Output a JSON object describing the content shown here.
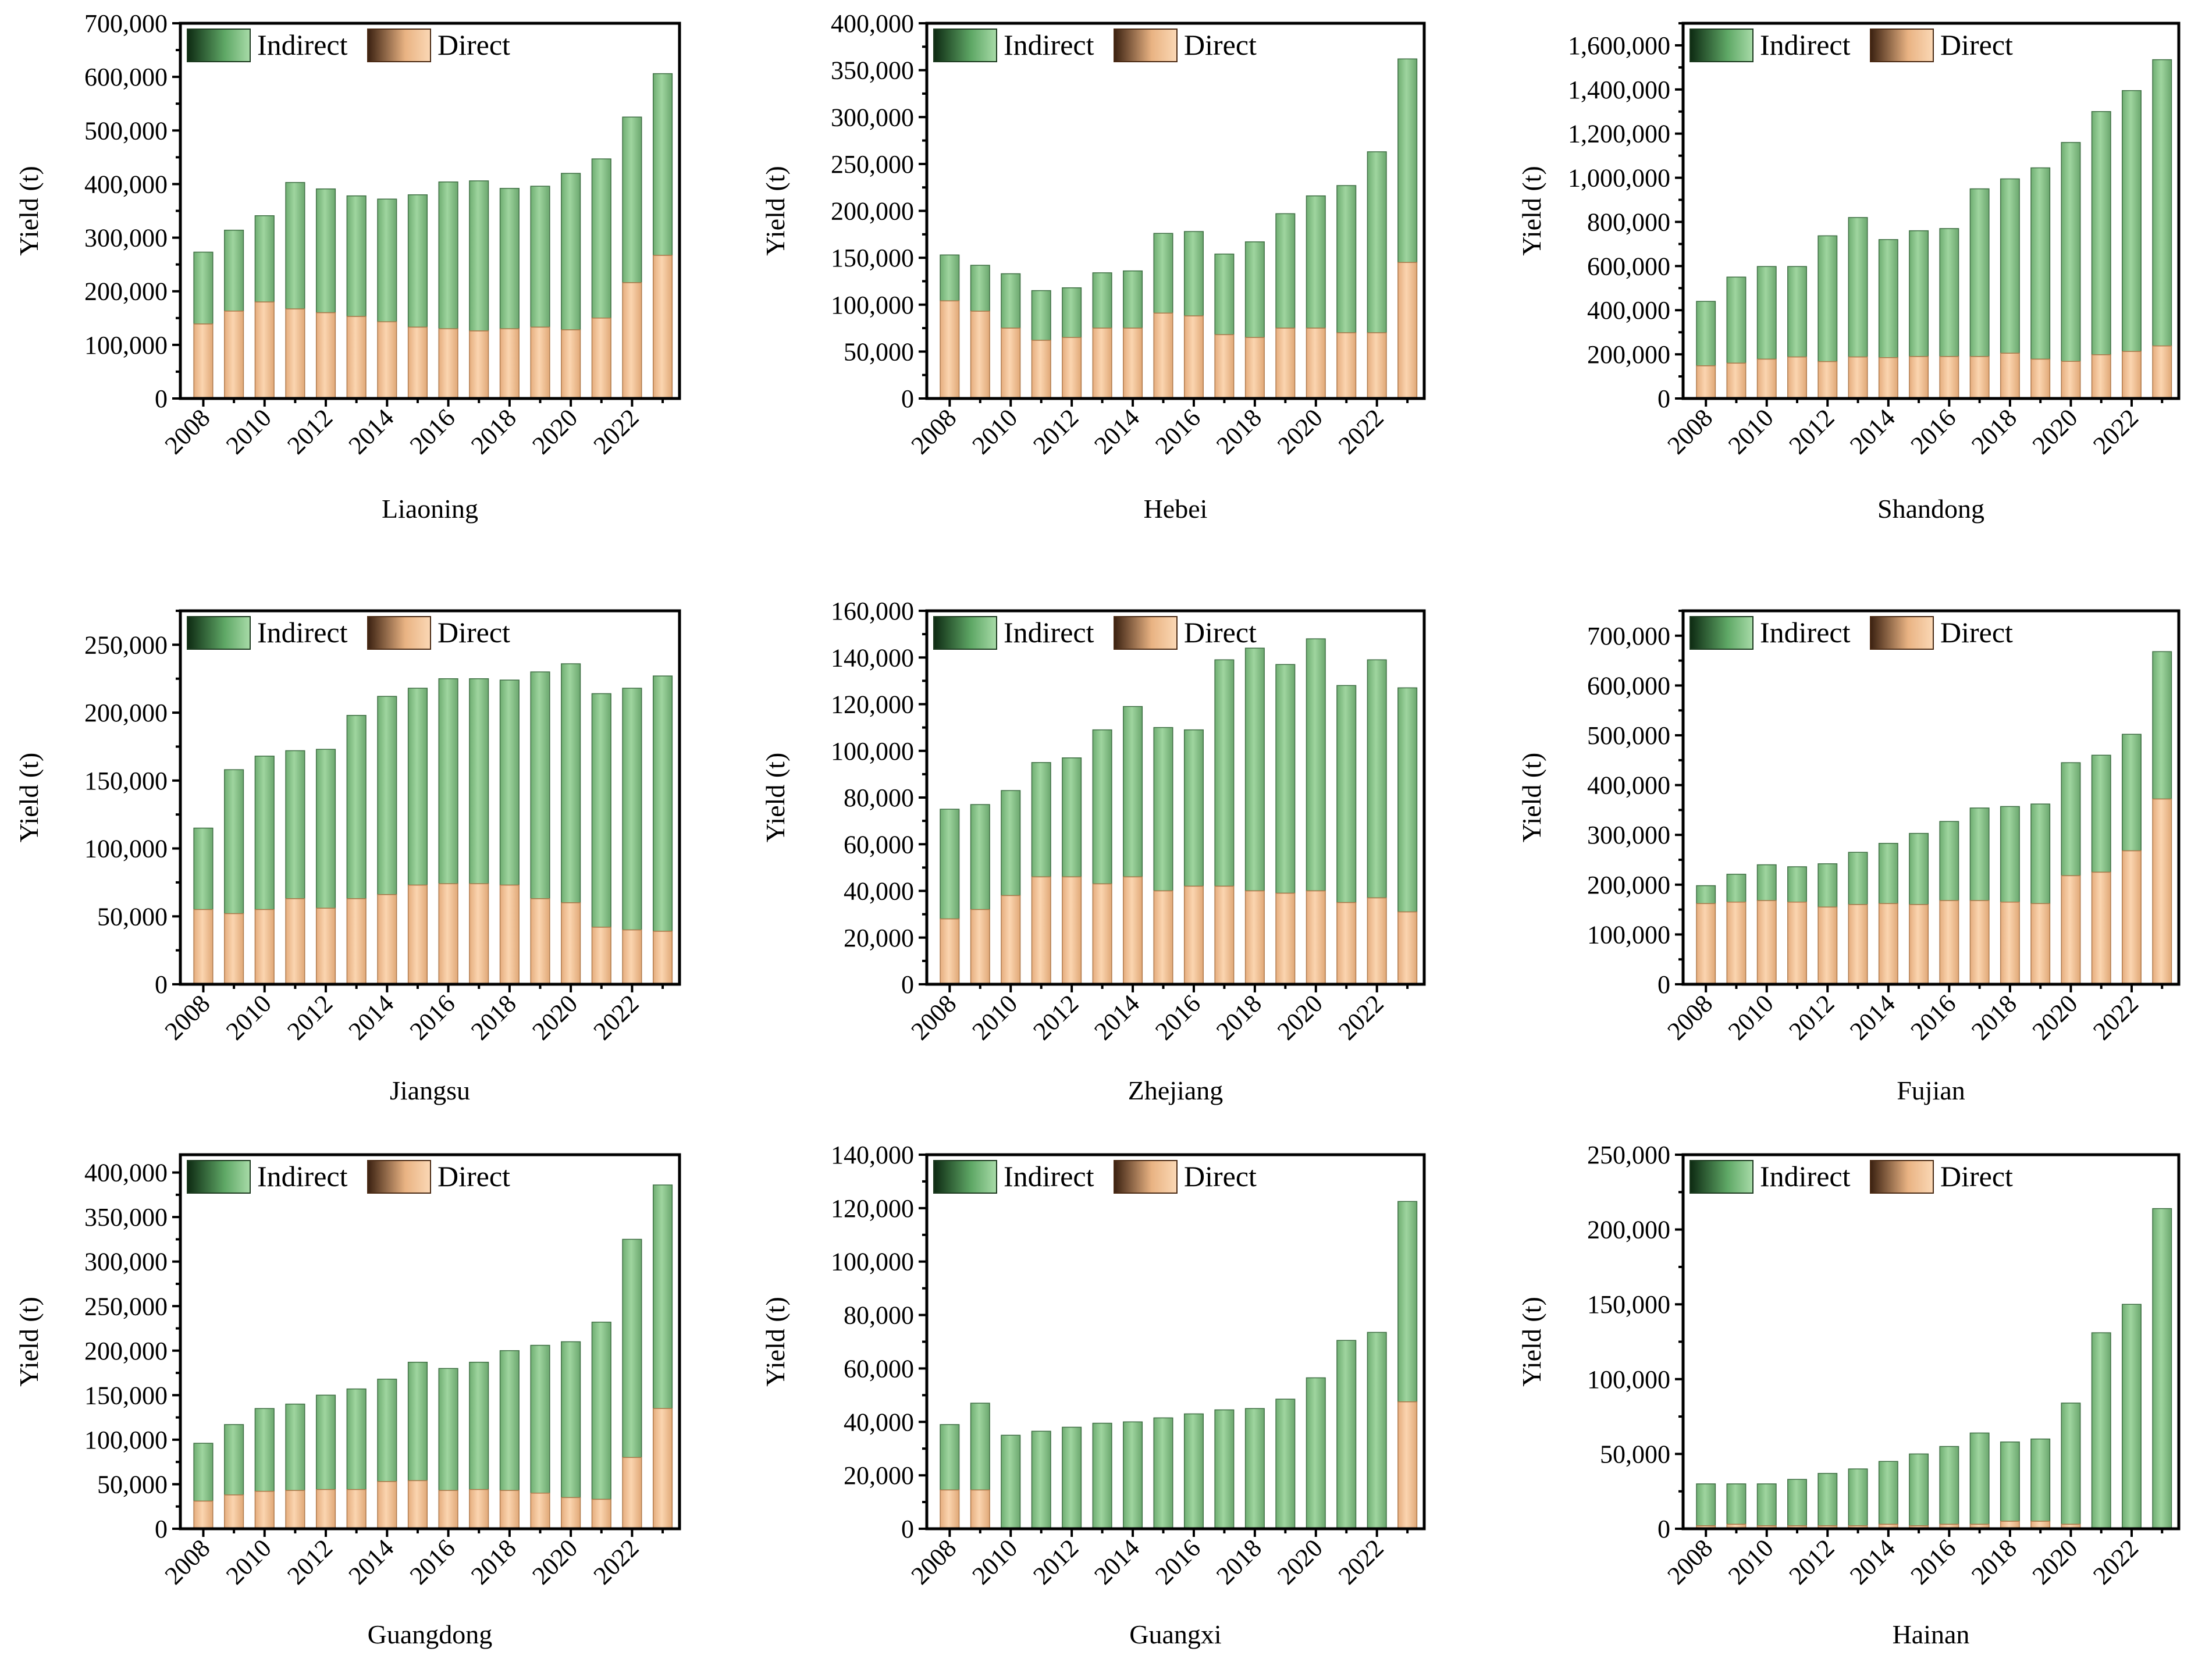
{
  "legend": {
    "indirect": "Indirect",
    "direct": "Direct"
  },
  "colors": {
    "indirect_fill": "#8fc98f",
    "indirect_dark": "#0d2a12",
    "direct_fill": "#f5c9a0",
    "direct_dark": "#3a2010",
    "axis": "#000000"
  },
  "chart_data": [
    {
      "type": "bar",
      "stacked": true,
      "title": "Liaoning",
      "xlabel": "",
      "ylabel": "Yield (t)",
      "x": [
        2008,
        2009,
        2010,
        2011,
        2012,
        2013,
        2014,
        2015,
        2016,
        2017,
        2018,
        2019,
        2020,
        2021,
        2022,
        2023
      ],
      "x_tick_labels": [
        "2008",
        "2010",
        "2012",
        "2014",
        "2016",
        "2018",
        "2020",
        "2022"
      ],
      "ylim": [
        0,
        700000
      ],
      "y_ticks": [
        0,
        100000,
        200000,
        300000,
        400000,
        500000,
        600000,
        700000
      ],
      "y_tick_labels": [
        "0",
        "100,000",
        "200,000",
        "300,000",
        "400,000",
        "500,000",
        "600,000",
        "700,000"
      ],
      "series": [
        {
          "name": "Indirect",
          "totals": [
            273000,
            314000,
            341000,
            403000,
            391000,
            378000,
            372000,
            380000,
            404000,
            406000,
            392000,
            396000,
            420000,
            447000,
            525000,
            606000
          ]
        },
        {
          "name": "Direct",
          "values": [
            139000,
            163000,
            180000,
            167000,
            160000,
            153000,
            143000,
            133000,
            130000,
            126000,
            130000,
            133000,
            128000,
            150000,
            216000,
            267000
          ]
        }
      ],
      "legend_position": "top-left",
      "grid": false
    },
    {
      "type": "bar",
      "stacked": true,
      "title": "Hebei",
      "xlabel": "",
      "ylabel": "Yield (t)",
      "x": [
        2008,
        2009,
        2010,
        2011,
        2012,
        2013,
        2014,
        2015,
        2016,
        2017,
        2018,
        2019,
        2020,
        2021,
        2022,
        2023
      ],
      "x_tick_labels": [
        "2008",
        "2010",
        "2012",
        "2014",
        "2016",
        "2018",
        "2020",
        "2022"
      ],
      "ylim": [
        0,
        400000
      ],
      "y_ticks": [
        0,
        50000,
        100000,
        150000,
        200000,
        250000,
        300000,
        350000,
        400000
      ],
      "y_tick_labels": [
        "0",
        "50,000",
        "100,000",
        "150,000",
        "200,000",
        "250,000",
        "300,000",
        "350,000",
        "400,000"
      ],
      "series": [
        {
          "name": "Indirect",
          "totals": [
            153000,
            142000,
            133000,
            115000,
            118000,
            134000,
            136000,
            176000,
            178000,
            154000,
            167000,
            197000,
            216000,
            227000,
            263000,
            362000
          ]
        },
        {
          "name": "Direct",
          "values": [
            104000,
            93000,
            75000,
            62000,
            65000,
            75000,
            75000,
            91000,
            88000,
            68000,
            65000,
            75000,
            75000,
            70000,
            70000,
            145000
          ]
        }
      ],
      "legend_position": "top-left",
      "grid": false
    },
    {
      "type": "bar",
      "stacked": true,
      "title": "Shandong",
      "xlabel": "",
      "ylabel": "Yield (t)",
      "x": [
        2008,
        2009,
        2010,
        2011,
        2012,
        2013,
        2014,
        2015,
        2016,
        2017,
        2018,
        2019,
        2020,
        2021,
        2022,
        2023
      ],
      "x_tick_labels": [
        "2008",
        "2010",
        "2012",
        "2014",
        "2016",
        "2018",
        "2020",
        "2022"
      ],
      "ylim": [
        0,
        1700000
      ],
      "y_ticks": [
        0,
        200000,
        400000,
        600000,
        800000,
        1000000,
        1200000,
        1400000,
        1600000
      ],
      "y_tick_labels": [
        "0",
        "200,000",
        "400,000",
        "600,000",
        "800,000",
        "1,000,000",
        "1,200,000",
        "1,400,000",
        "1,600,000"
      ],
      "series": [
        {
          "name": "Indirect",
          "totals": [
            440000,
            550000,
            598000,
            598000,
            737000,
            820000,
            720000,
            760000,
            770000,
            950000,
            995000,
            1045000,
            1160000,
            1300000,
            1395000,
            1535000
          ]
        },
        {
          "name": "Direct",
          "values": [
            148000,
            160000,
            178000,
            188000,
            167000,
            188000,
            185000,
            190000,
            190000,
            190000,
            205000,
            178000,
            168000,
            198000,
            213000,
            238000
          ]
        }
      ],
      "legend_position": "top-left",
      "grid": false
    },
    {
      "type": "bar",
      "stacked": true,
      "title": "Jiangsu",
      "xlabel": "",
      "ylabel": "Yield (t)",
      "x": [
        2008,
        2009,
        2010,
        2011,
        2012,
        2013,
        2014,
        2015,
        2016,
        2017,
        2018,
        2019,
        2020,
        2021,
        2022,
        2023
      ],
      "x_tick_labels": [
        "2008",
        "2010",
        "2012",
        "2014",
        "2016",
        "2018",
        "2020",
        "2022"
      ],
      "ylim": [
        0,
        275000
      ],
      "y_ticks": [
        0,
        50000,
        100000,
        150000,
        200000,
        250000
      ],
      "y_tick_labels": [
        "0",
        "50,000",
        "100,000",
        "150,000",
        "200,000",
        "250,000"
      ],
      "series": [
        {
          "name": "Indirect",
          "totals": [
            115000,
            158000,
            168000,
            172000,
            173000,
            198000,
            212000,
            218000,
            225000,
            225000,
            224000,
            230000,
            236000,
            214000,
            218000,
            227000
          ]
        },
        {
          "name": "Direct",
          "values": [
            55000,
            52000,
            55000,
            63000,
            56000,
            63000,
            66000,
            73000,
            74000,
            74000,
            73000,
            63000,
            60000,
            42000,
            40000,
            39000
          ]
        }
      ],
      "legend_position": "top-left",
      "grid": false
    },
    {
      "type": "bar",
      "stacked": true,
      "title": "Zhejiang",
      "xlabel": "",
      "ylabel": "Yield (t)",
      "x": [
        2008,
        2009,
        2010,
        2011,
        2012,
        2013,
        2014,
        2015,
        2016,
        2017,
        2018,
        2019,
        2020,
        2021,
        2022,
        2023
      ],
      "x_tick_labels": [
        "2008",
        "2010",
        "2012",
        "2014",
        "2016",
        "2018",
        "2020",
        "2022"
      ],
      "ylim": [
        0,
        160000
      ],
      "y_ticks": [
        0,
        20000,
        40000,
        60000,
        80000,
        100000,
        120000,
        140000,
        160000
      ],
      "y_tick_labels": [
        "0",
        "20,000",
        "40,000",
        "60,000",
        "80,000",
        "100,000",
        "120,000",
        "140,000",
        "160,000"
      ],
      "series": [
        {
          "name": "Indirect",
          "totals": [
            75000,
            77000,
            83000,
            95000,
            97000,
            109000,
            119000,
            110000,
            109000,
            139000,
            144000,
            137000,
            148000,
            128000,
            139000,
            127000
          ]
        },
        {
          "name": "Direct",
          "values": [
            28000,
            32000,
            38000,
            46000,
            46000,
            43000,
            46000,
            40000,
            42000,
            42000,
            40000,
            39000,
            40000,
            35000,
            37000,
            31000
          ]
        }
      ],
      "legend_position": "top-left",
      "grid": false
    },
    {
      "type": "bar",
      "stacked": true,
      "title": "Fujian",
      "xlabel": "",
      "ylabel": "Yield (t)",
      "x": [
        2008,
        2009,
        2010,
        2011,
        2012,
        2013,
        2014,
        2015,
        2016,
        2017,
        2018,
        2019,
        2020,
        2021,
        2022,
        2023
      ],
      "x_tick_labels": [
        "2008",
        "2010",
        "2012",
        "2014",
        "2016",
        "2018",
        "2020",
        "2022"
      ],
      "ylim": [
        0,
        750000
      ],
      "y_ticks": [
        0,
        100000,
        200000,
        300000,
        400000,
        500000,
        600000,
        700000
      ],
      "y_tick_labels": [
        "0",
        "100,000",
        "200,000",
        "300,000",
        "400,000",
        "500,000",
        "600,000",
        "700,000"
      ],
      "series": [
        {
          "name": "Indirect",
          "totals": [
            198000,
            221000,
            240000,
            236000,
            242000,
            265000,
            283000,
            303000,
            327000,
            354000,
            357000,
            362000,
            445000,
            460000,
            502000,
            668000
          ]
        },
        {
          "name": "Direct",
          "values": [
            162000,
            165000,
            168000,
            165000,
            155000,
            160000,
            162000,
            160000,
            168000,
            168000,
            165000,
            162000,
            218000,
            225000,
            268000,
            372000
          ]
        }
      ],
      "legend_position": "top-left",
      "grid": false
    },
    {
      "type": "bar",
      "stacked": true,
      "title": "Guangdong",
      "xlabel": "",
      "ylabel": "Yield (t)",
      "x": [
        2008,
        2009,
        2010,
        2011,
        2012,
        2013,
        2014,
        2015,
        2016,
        2017,
        2018,
        2019,
        2020,
        2021,
        2022,
        2023
      ],
      "x_tick_labels": [
        "2008",
        "2010",
        "2012",
        "2014",
        "2016",
        "2018",
        "2020",
        "2022"
      ],
      "ylim": [
        0,
        420000
      ],
      "y_ticks": [
        0,
        50000,
        100000,
        150000,
        200000,
        250000,
        300000,
        350000,
        400000
      ],
      "y_tick_labels": [
        "0",
        "50,000",
        "100,000",
        "150,000",
        "200,000",
        "250,000",
        "300,000",
        "350,000",
        "400,000"
      ],
      "series": [
        {
          "name": "Indirect",
          "totals": [
            96000,
            117000,
            135000,
            140000,
            150000,
            157000,
            168000,
            187000,
            180000,
            187000,
            200000,
            206000,
            210000,
            232000,
            325000,
            386000
          ]
        },
        {
          "name": "Direct",
          "values": [
            31000,
            38000,
            42000,
            43000,
            44000,
            44000,
            53000,
            54000,
            43000,
            44000,
            43000,
            40000,
            35000,
            33000,
            80000,
            135000
          ]
        }
      ],
      "legend_position": "top-left",
      "grid": false
    },
    {
      "type": "bar",
      "stacked": true,
      "title": "Guangxi",
      "xlabel": "",
      "ylabel": "Yield (t)",
      "x": [
        2008,
        2009,
        2010,
        2011,
        2012,
        2013,
        2014,
        2015,
        2016,
        2017,
        2018,
        2019,
        2020,
        2021,
        2022,
        2023
      ],
      "x_tick_labels": [
        "2008",
        "2010",
        "2012",
        "2014",
        "2016",
        "2018",
        "2020",
        "2022"
      ],
      "ylim": [
        0,
        140000
      ],
      "y_ticks": [
        0,
        20000,
        40000,
        60000,
        80000,
        100000,
        120000,
        140000
      ],
      "y_tick_labels": [
        "0",
        "20,000",
        "40,000",
        "60,000",
        "80,000",
        "100,000",
        "120,000",
        "140,000"
      ],
      "series": [
        {
          "name": "Indirect",
          "totals": [
            39000,
            47000,
            35000,
            36500,
            38000,
            39500,
            40000,
            41500,
            43000,
            44500,
            45000,
            48500,
            56500,
            70500,
            73500,
            122500
          ]
        },
        {
          "name": "Direct",
          "values": [
            14500,
            14500,
            0,
            0,
            0,
            0,
            0,
            0,
            0,
            0,
            0,
            0,
            0,
            0,
            0,
            47500
          ]
        }
      ],
      "legend_position": "top-left",
      "grid": false
    },
    {
      "type": "bar",
      "stacked": true,
      "title": "Hainan",
      "xlabel": "",
      "ylabel": "Yield (t)",
      "x": [
        2008,
        2009,
        2010,
        2011,
        2012,
        2013,
        2014,
        2015,
        2016,
        2017,
        2018,
        2019,
        2020,
        2021,
        2022,
        2023
      ],
      "x_tick_labels": [
        "2008",
        "2010",
        "2012",
        "2014",
        "2016",
        "2018",
        "2020",
        "2022"
      ],
      "ylim": [
        0,
        250000
      ],
      "y_ticks": [
        0,
        50000,
        100000,
        150000,
        200000,
        250000
      ],
      "y_tick_labels": [
        "0",
        "50,000",
        "100,000",
        "150,000",
        "200,000",
        "250,000"
      ],
      "series": [
        {
          "name": "Indirect",
          "totals": [
            30000,
            30000,
            30000,
            33000,
            37000,
            40000,
            45000,
            50000,
            55000,
            64000,
            58000,
            60000,
            84000,
            131000,
            150000,
            214000
          ]
        },
        {
          "name": "Direct",
          "values": [
            2000,
            3000,
            2000,
            2000,
            2000,
            2000,
            3000,
            2000,
            3000,
            3000,
            5000,
            5000,
            3000,
            0,
            0,
            0
          ]
        }
      ],
      "legend_position": "top-left",
      "grid": false
    }
  ]
}
